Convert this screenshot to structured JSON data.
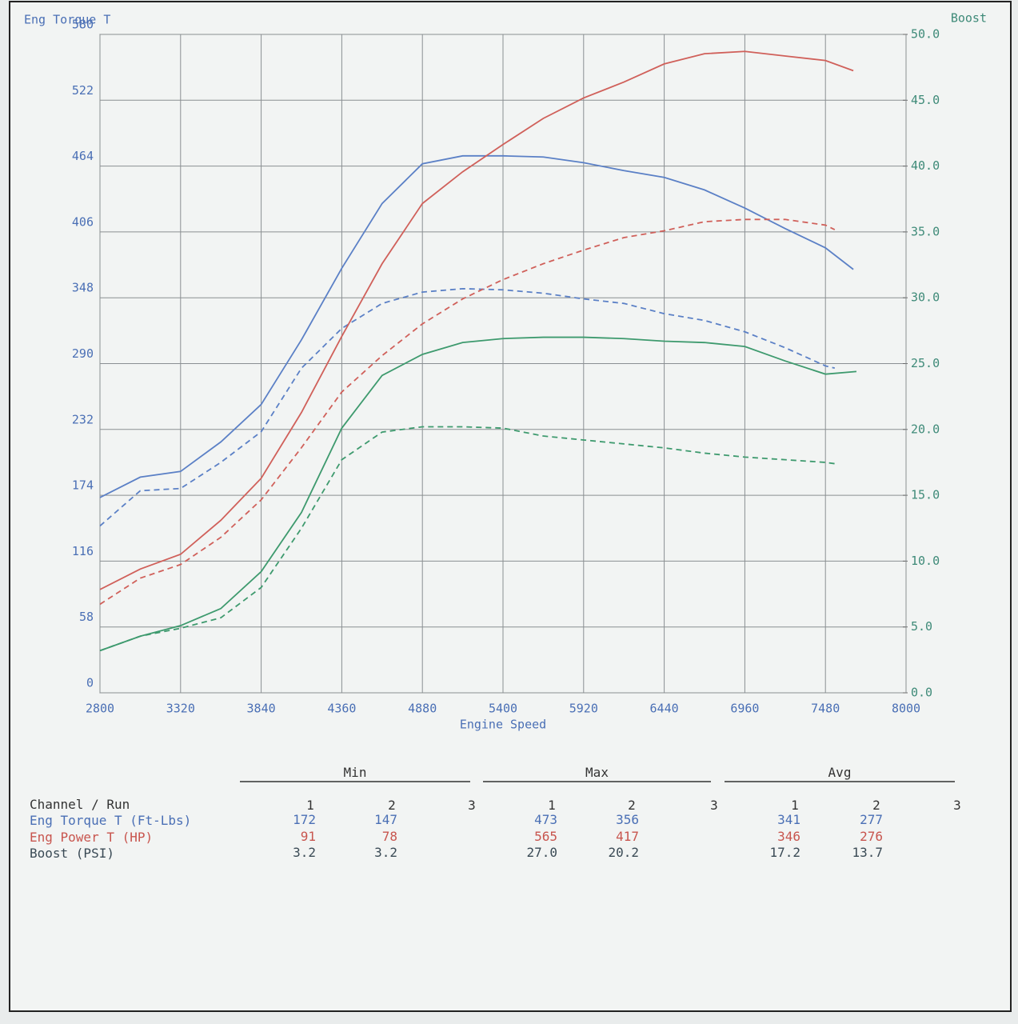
{
  "chart_data": {
    "type": "line",
    "y_label": "Eng Torque T",
    "y2_label": "Boost",
    "x_label": "Engine Speed",
    "xlim": [
      2800,
      8000
    ],
    "xticks": [
      2800,
      3320,
      3840,
      4360,
      4880,
      5400,
      5920,
      6440,
      6960,
      7480,
      8000
    ],
    "ylim": [
      0,
      580
    ],
    "yticks": [
      0,
      58,
      116,
      174,
      232,
      290,
      348,
      406,
      464,
      522,
      580
    ],
    "y2lim": [
      0,
      50
    ],
    "y2ticks": [
      {
        "value": 0,
        "label": "0.0"
      },
      {
        "value": 5,
        "label": "5.0"
      },
      {
        "value": 10,
        "label": "10.0"
      },
      {
        "value": 15,
        "label": "15.0"
      },
      {
        "value": 20,
        "label": "20.0"
      },
      {
        "value": 25,
        "label": "25.0"
      },
      {
        "value": 30,
        "label": "30.0"
      },
      {
        "value": 35,
        "label": "35.0"
      },
      {
        "value": 40,
        "label": "40.0"
      },
      {
        "value": 45,
        "label": "45.0"
      },
      {
        "value": 50,
        "label": "50.0"
      }
    ],
    "grid": true,
    "series": [
      {
        "color": "#5b80c6",
        "dashed": false,
        "x": [
          2800,
          3060,
          3320,
          3580,
          3840,
          4100,
          4360,
          4620,
          4880,
          5140,
          5400,
          5660,
          5920,
          6180,
          6440,
          6700,
          6960,
          7220,
          7480,
          7660
        ],
        "values": [
          172,
          190,
          195,
          221,
          254,
          311,
          374,
          431,
          466,
          473,
          473,
          472,
          467,
          460,
          454,
          443,
          427,
          409,
          392,
          373
        ]
      },
      {
        "color": "#5b80c6",
        "dashed": true,
        "x": [
          2800,
          3060,
          3320,
          3580,
          3840,
          4100,
          4360,
          4620,
          4880,
          5140,
          5400,
          5660,
          5920,
          6180,
          6440,
          6700,
          6960,
          7220,
          7480,
          7540
        ],
        "values": [
          147,
          178,
          180,
          203,
          230,
          286,
          321,
          343,
          353,
          356,
          355,
          352,
          347,
          343,
          334,
          328,
          318,
          304,
          288,
          286
        ]
      },
      {
        "color": "#d0605a",
        "dashed": false,
        "x": [
          2800,
          3060,
          3320,
          3580,
          3840,
          4100,
          4360,
          4620,
          4880,
          5140,
          5400,
          5660,
          5920,
          6180,
          6440,
          6700,
          6960,
          7220,
          7480,
          7660
        ],
        "values": [
          91,
          109,
          122,
          152,
          189,
          247,
          314,
          378,
          431,
          459,
          483,
          506,
          524,
          538,
          554,
          563,
          565,
          561,
          557,
          548
        ]
      },
      {
        "color": "#d0605a",
        "dashed": true,
        "x": [
          2800,
          3060,
          3320,
          3580,
          3840,
          4100,
          4360,
          4620,
          4880,
          5140,
          5400,
          5660,
          5920,
          6180,
          6440,
          6700,
          6960,
          7220,
          7480,
          7540
        ],
        "values": [
          78,
          101,
          113,
          137,
          170,
          216,
          265,
          297,
          325,
          347,
          364,
          378,
          390,
          401,
          407,
          415,
          417,
          417,
          412,
          408
        ]
      },
      {
        "color": "#3e9a6e",
        "dashed": false,
        "axis": "y2",
        "x": [
          2800,
          3060,
          3320,
          3580,
          3840,
          4100,
          4360,
          4620,
          4880,
          5140,
          5400,
          5660,
          5920,
          6180,
          6440,
          6700,
          6960,
          7220,
          7480,
          7680
        ],
        "values": [
          3.2,
          4.3,
          5.1,
          6.4,
          9.2,
          13.7,
          20.1,
          24.1,
          25.7,
          26.6,
          26.9,
          27.0,
          27.0,
          26.9,
          26.7,
          26.6,
          26.3,
          25.2,
          24.2,
          24.4
        ]
      },
      {
        "color": "#3e9a6e",
        "dashed": true,
        "axis": "y2",
        "x": [
          2800,
          3060,
          3320,
          3580,
          3840,
          4100,
          4360,
          4620,
          4880,
          5140,
          5400,
          5660,
          5920,
          6180,
          6440,
          6700,
          6960,
          7220,
          7480,
          7540
        ],
        "values": [
          3.2,
          4.3,
          4.9,
          5.7,
          8.0,
          12.5,
          17.7,
          19.8,
          20.2,
          20.2,
          20.1,
          19.5,
          19.2,
          18.9,
          18.6,
          18.2,
          17.9,
          17.7,
          17.5,
          17.4
        ]
      }
    ]
  },
  "table": {
    "groups": [
      "Min",
      "Max",
      "Avg"
    ],
    "header": "Channel / Run",
    "runs": [
      1,
      2,
      3
    ],
    "rows": [
      {
        "label": "Eng Torque T (Ft-Lbs)",
        "color": "#4a6fb5",
        "values": [
          "172",
          "147",
          "473",
          "356",
          "341",
          "277"
        ]
      },
      {
        "label": "Eng Power T (HP)",
        "color": "#c8554e",
        "values": [
          "91",
          "78",
          "565",
          "417",
          "346",
          "276"
        ]
      },
      {
        "label": "Boost (PSI)",
        "color": "#3a4a55",
        "values": [
          "3.2",
          "3.2",
          "27.0",
          "20.2",
          "17.2",
          "13.7"
        ]
      }
    ]
  }
}
